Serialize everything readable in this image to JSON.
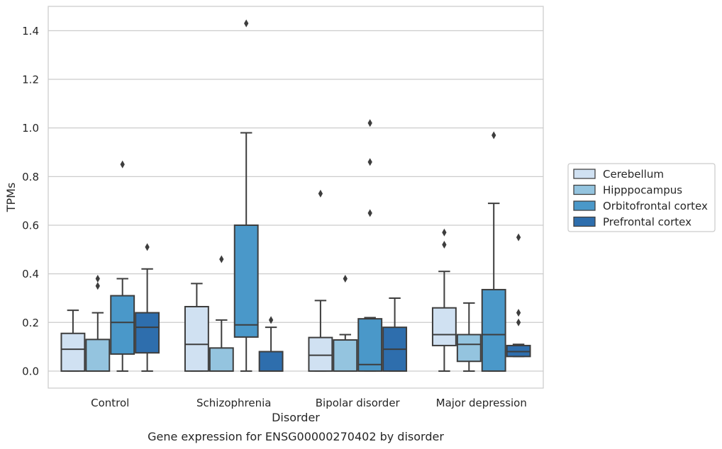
{
  "chart_data": {
    "type": "box",
    "caption": "Gene expression for ENSG00000270402 by disorder",
    "xlabel": "Disorder",
    "ylabel": "TPMs",
    "ylim": [
      -0.07,
      1.5
    ],
    "yticks": [
      0.0,
      0.2,
      0.4,
      0.6,
      0.8,
      1.0,
      1.2,
      1.4
    ],
    "ytick_labels": [
      "0.0",
      "0.2",
      "0.4",
      "0.6",
      "0.8",
      "1.0",
      "1.2",
      "1.4"
    ],
    "grid": "horizontal",
    "legend_position": "right",
    "categories": [
      "Control",
      "Schizophrenia",
      "Bipolar disorder",
      "Major depression"
    ],
    "series": [
      {
        "name": "Cerebellum",
        "color": "#d0e1f2",
        "boxes": [
          {
            "whislo": 0.0,
            "q1": 0.0,
            "med": 0.09,
            "q3": 0.155,
            "whishi": 0.25,
            "fliers": []
          },
          {
            "whislo": 0.0,
            "q1": 0.0,
            "med": 0.11,
            "q3": 0.265,
            "whishi": 0.36,
            "fliers": []
          },
          {
            "whislo": 0.0,
            "q1": 0.0,
            "med": 0.065,
            "q3": 0.138,
            "whishi": 0.29,
            "fliers": [
              0.73
            ]
          },
          {
            "whislo": 0.0,
            "q1": 0.105,
            "med": 0.15,
            "q3": 0.26,
            "whishi": 0.41,
            "fliers": [
              0.52,
              0.57
            ]
          }
        ]
      },
      {
        "name": "Hipppocampus",
        "color": "#94c4df",
        "boxes": [
          {
            "whislo": 0.0,
            "q1": 0.0,
            "med": 0.0,
            "q3": 0.13,
            "whishi": 0.24,
            "fliers": [
              0.35,
              0.38
            ]
          },
          {
            "whislo": 0.0,
            "q1": 0.0,
            "med": 0.0,
            "q3": 0.095,
            "whishi": 0.21,
            "fliers": [
              0.46
            ]
          },
          {
            "whislo": 0.0,
            "q1": 0.0,
            "med": 0.0,
            "q3": 0.128,
            "whishi": 0.15,
            "fliers": [
              0.38
            ]
          },
          {
            "whislo": 0.0,
            "q1": 0.04,
            "med": 0.11,
            "q3": 0.15,
            "whishi": 0.28,
            "fliers": []
          }
        ]
      },
      {
        "name": "Orbitofrontal cortex",
        "color": "#4a98c9",
        "boxes": [
          {
            "whislo": 0.0,
            "q1": 0.07,
            "med": 0.2,
            "q3": 0.31,
            "whishi": 0.38,
            "fliers": [
              0.85
            ]
          },
          {
            "whislo": 0.0,
            "q1": 0.14,
            "med": 0.19,
            "q3": 0.6,
            "whishi": 0.98,
            "fliers": [
              1.43
            ]
          },
          {
            "whislo": 0.0,
            "q1": 0.0,
            "med": 0.027,
            "q3": 0.215,
            "whishi": 0.22,
            "fliers": [
              0.65,
              0.86,
              1.02
            ]
          },
          {
            "whislo": 0.0,
            "q1": 0.0,
            "med": 0.15,
            "q3": 0.335,
            "whishi": 0.69,
            "fliers": [
              0.97
            ]
          }
        ]
      },
      {
        "name": "Prefrontal cortex",
        "color": "#2e6ead",
        "boxes": [
          {
            "whislo": 0.0,
            "q1": 0.075,
            "med": 0.18,
            "q3": 0.24,
            "whishi": 0.42,
            "fliers": [
              0.51
            ]
          },
          {
            "whislo": 0.0,
            "q1": 0.0,
            "med": 0.0,
            "q3": 0.08,
            "whishi": 0.18,
            "fliers": [
              0.21
            ]
          },
          {
            "whislo": 0.0,
            "q1": 0.0,
            "med": 0.09,
            "q3": 0.18,
            "whishi": 0.3,
            "fliers": []
          },
          {
            "whislo": 0.06,
            "q1": 0.06,
            "med": 0.08,
            "q3": 0.105,
            "whishi": 0.11,
            "fliers": [
              0.2,
              0.24,
              0.55
            ]
          }
        ]
      }
    ]
  }
}
